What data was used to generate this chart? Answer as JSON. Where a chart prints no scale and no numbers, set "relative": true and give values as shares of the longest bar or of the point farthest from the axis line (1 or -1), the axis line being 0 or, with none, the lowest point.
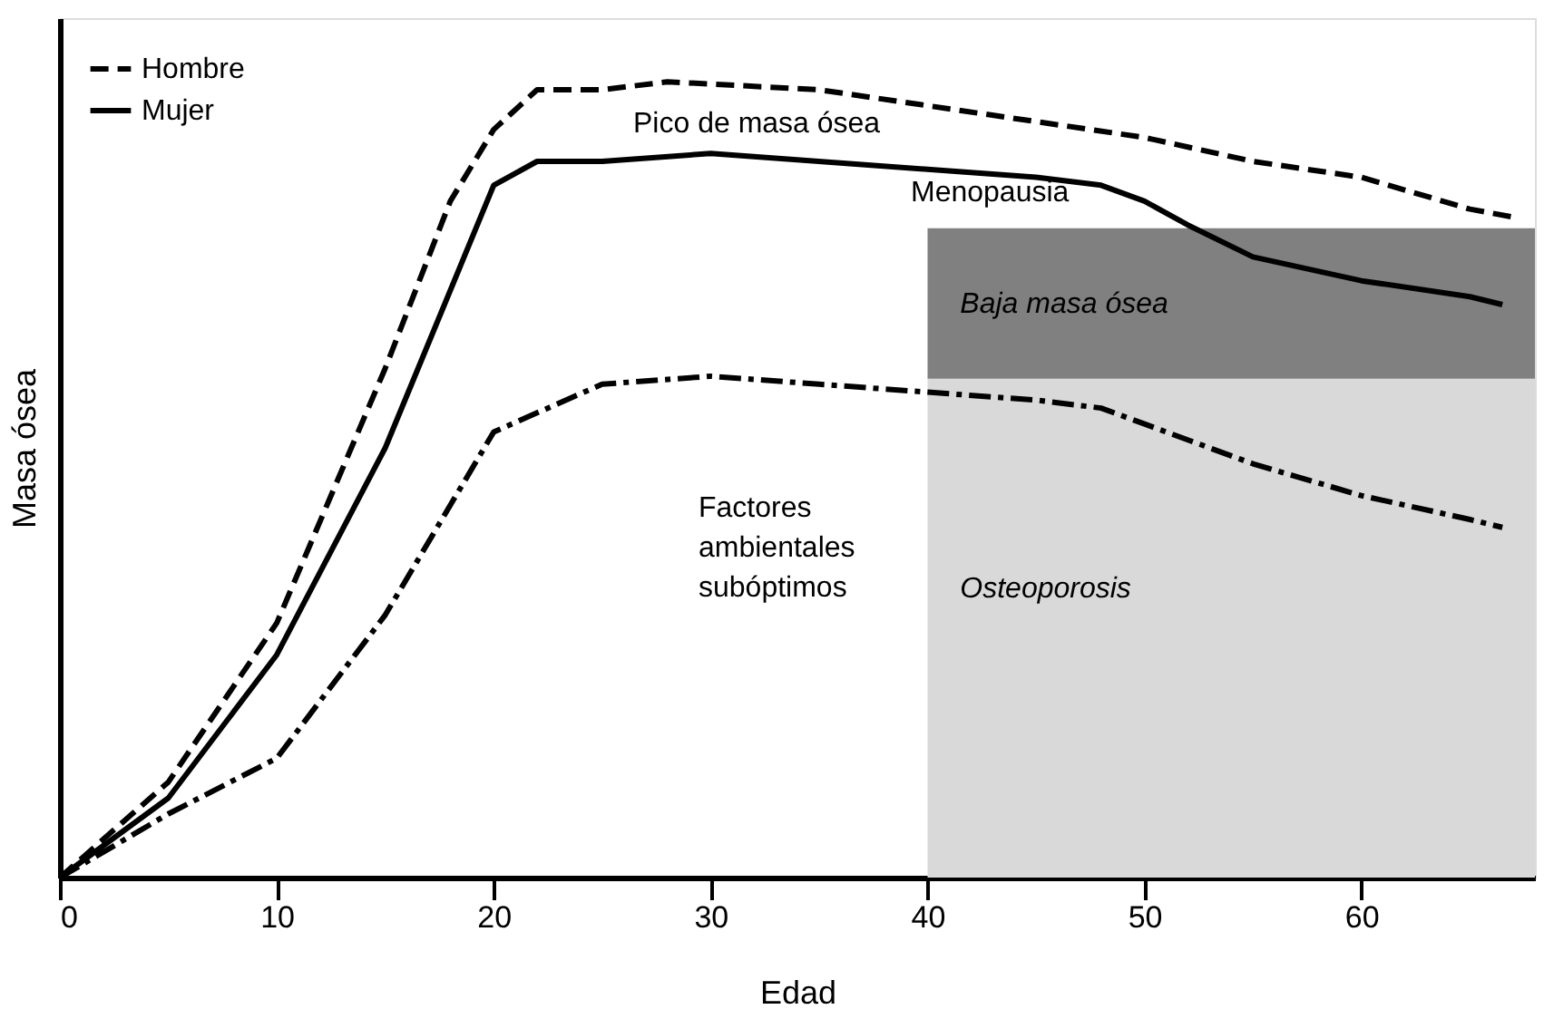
{
  "chart_data": {
    "type": "line",
    "relative": true,
    "xlabel": "Edad",
    "ylabel": "Masa ósea",
    "xlim": [
      0,
      68
    ],
    "xticks": [
      0,
      10,
      20,
      30,
      40,
      50,
      60
    ],
    "grid": false,
    "legend": "top left",
    "tick_labels": "x",
    "series": [
      {
        "name": "Hombre",
        "color": "#000000",
        "line_style": "dashed",
        "x": [
          0,
          5,
          10,
          15,
          18,
          20,
          22,
          25,
          28,
          35,
          40,
          45,
          50,
          55,
          60,
          65,
          67
        ],
        "values": [
          0,
          0.12,
          0.32,
          0.64,
          0.85,
          0.94,
          0.99,
          0.99,
          1,
          0.99,
          0.97,
          0.95,
          0.93,
          0.9,
          0.88,
          0.84,
          0.83
        ]
      },
      {
        "name": "Mujer",
        "color": "#000000",
        "line_style": "solid",
        "x": [
          0,
          5,
          10,
          15,
          20,
          22,
          25,
          30,
          40,
          45,
          48,
          50,
          52,
          55,
          60,
          65,
          66.5
        ],
        "values": [
          0,
          0.1,
          0.28,
          0.54,
          0.87,
          0.9,
          0.9,
          0.91,
          0.89,
          0.88,
          0.87,
          0.85,
          0.82,
          0.78,
          0.75,
          0.73,
          0.72
        ]
      },
      {
        "color": "#000000",
        "line_style": "dashdot",
        "x": [
          0,
          5,
          10,
          15,
          20,
          25,
          30,
          35,
          40,
          45,
          48,
          50,
          55,
          60,
          65,
          66.5
        ],
        "values": [
          0,
          0.08,
          0.15,
          0.33,
          0.56,
          0.62,
          0.63,
          0.62,
          0.61,
          0.6,
          0.59,
          0.57,
          0.52,
          0.48,
          0.45,
          0.44
        ]
      }
    ],
    "bands": [
      {
        "axis": "x",
        "from": 40,
        "to": 68,
        "label": "Osteoporosis",
        "color": "#d9d9d9"
      },
      {
        "axis": "y",
        "from": 0.627,
        "to": 0.816,
        "label": "Baja masa ósea",
        "color": "#808080"
      }
    ],
    "annotations": [
      "Pico de masa ósea",
      "Menopausia",
      "Factores\nambientales\nsubóptimos"
    ]
  }
}
